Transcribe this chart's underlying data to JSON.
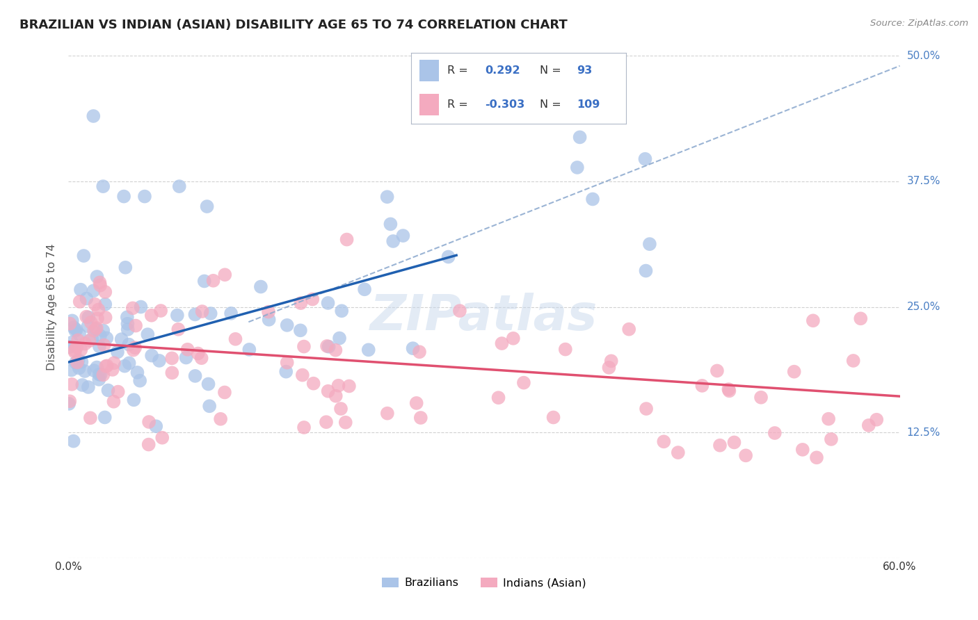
{
  "title": "BRAZILIAN VS INDIAN (ASIAN) DISABILITY AGE 65 TO 74 CORRELATION CHART",
  "source_text": "Source: ZipAtlas.com",
  "ylabel": "Disability Age 65 to 74",
  "xmin": 0.0,
  "xmax": 0.6,
  "ymin": 0.0,
  "ymax": 0.5,
  "yticks": [
    0.0,
    0.125,
    0.25,
    0.375,
    0.5
  ],
  "ytick_labels": [
    "",
    "12.5%",
    "25.0%",
    "37.5%",
    "50.0%"
  ],
  "brazilian_color": "#aac4e8",
  "indian_color": "#f4aabf",
  "brazilian_line_color": "#2060b0",
  "indian_line_color": "#e05070",
  "dashed_line_color": "#90acd0",
  "R_brazilian": 0.292,
  "N_brazilian": 93,
  "R_indian": -0.303,
  "N_indian": 109,
  "legend_label_brazilian": "Brazilians",
  "legend_label_indian": "Indians (Asian)",
  "stat_color": "#3a6fc4",
  "background_color": "#ffffff",
  "grid_color": "#cccccc",
  "title_color": "#222222",
  "source_color": "#888888",
  "ylabel_color": "#555555",
  "ytick_color": "#4a7fc4",
  "watermark_color": "#c8d8ec"
}
